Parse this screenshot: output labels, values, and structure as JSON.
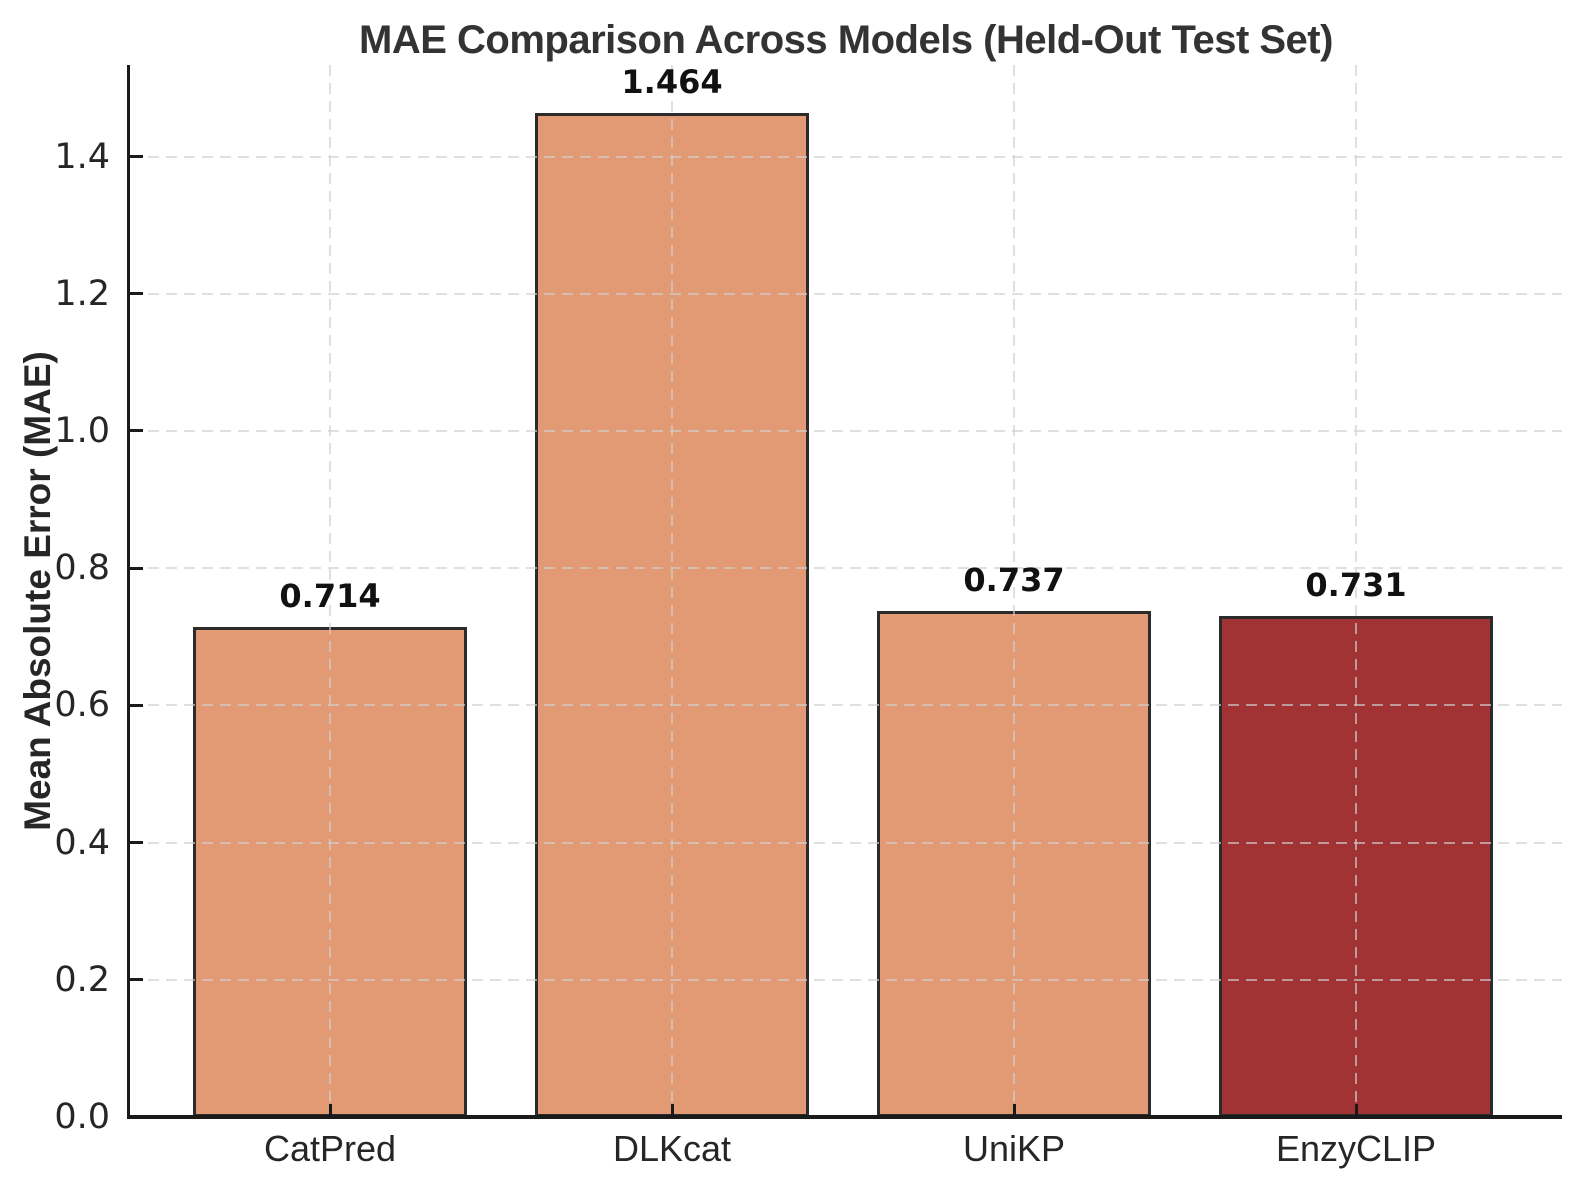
{
  "chart_data": {
    "type": "bar",
    "title": "MAE Comparison Across Models (Held-Out Test Set)",
    "xlabel": "",
    "ylabel": "Mean Absolute Error (MAE)",
    "categories": [
      "CatPred",
      "DLKcat",
      "UniKP",
      "EnzyCLIP"
    ],
    "values": [
      0.714,
      1.464,
      0.737,
      0.731
    ],
    "bar_value_labels": [
      "0.714",
      "1.464",
      "0.737",
      "0.731"
    ],
    "bar_colors": [
      "#E19A73",
      "#E19A73",
      "#E19A73",
      "#A23335"
    ],
    "bar_edge_color": "#2B2B2B",
    "ylim": [
      0,
      1.53
    ],
    "yticks": [
      0.0,
      0.2,
      0.4,
      0.6,
      0.8,
      1.0,
      1.2,
      1.4
    ],
    "ytick_labels": [
      "0.0",
      "0.2",
      "0.4",
      "0.6",
      "0.8",
      "1.0",
      "1.2",
      "1.4"
    ],
    "grid": "dashed gridlines on both axes, drawn above bars",
    "legend": "none",
    "spines": "left and bottom only, ticks point inward"
  }
}
